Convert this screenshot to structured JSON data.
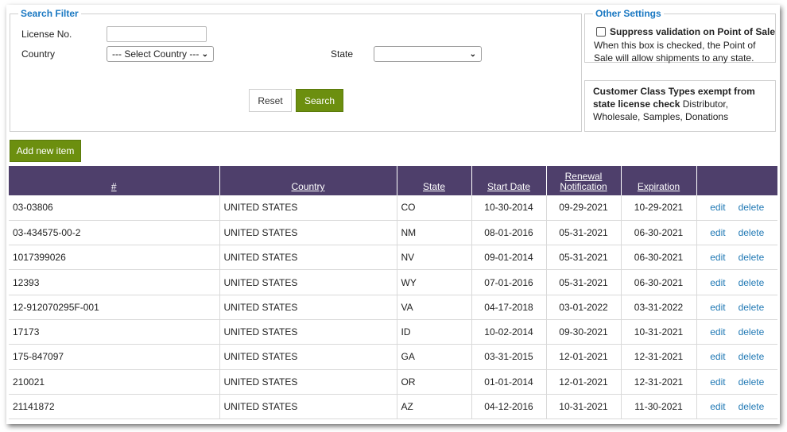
{
  "search_filter": {
    "legend": "Search Filter",
    "license_label": "License No.",
    "license_value": "",
    "country_label": "Country",
    "country_selected": "--- Select Country ---",
    "state_label": "State",
    "state_selected": "",
    "reset_label": "Reset",
    "search_label": "Search"
  },
  "other_settings": {
    "legend": "Other Settings",
    "checkbox_label": "Suppress validation on Point of Sale",
    "checked": false,
    "description": "When this box is checked, the Point of Sale will allow shipments to any state."
  },
  "customer_class": {
    "title": "Customer Class Types exempt from state license check",
    "value": "Distributor, Wholesale, Samples, Donations"
  },
  "add_new_label": "Add new item",
  "table": {
    "headers": {
      "number": "#",
      "country": "Country",
      "state": "State",
      "start_date": "Start Date",
      "renewal": "Renewal Notification",
      "expiration": "Expiration"
    },
    "edit_label": "edit",
    "delete_label": "delete",
    "rows": [
      {
        "number": "03-03806",
        "country": "UNITED STATES",
        "state": "CO",
        "start": "10-30-2014",
        "renewal": "09-29-2021",
        "expiration": "10-29-2021"
      },
      {
        "number": "03-434575-00-2",
        "country": "UNITED STATES",
        "state": "NM",
        "start": "08-01-2016",
        "renewal": "05-31-2021",
        "expiration": "06-30-2021"
      },
      {
        "number": "1017399026",
        "country": "UNITED STATES",
        "state": "NV",
        "start": "09-01-2014",
        "renewal": "05-31-2021",
        "expiration": "06-30-2021"
      },
      {
        "number": "12393",
        "country": "UNITED STATES",
        "state": "WY",
        "start": "07-01-2016",
        "renewal": "05-31-2021",
        "expiration": "06-30-2021"
      },
      {
        "number": "12-912070295F-001",
        "country": "UNITED STATES",
        "state": "VA",
        "start": "04-17-2018",
        "renewal": "03-01-2022",
        "expiration": "03-31-2022"
      },
      {
        "number": "17173",
        "country": "UNITED STATES",
        "state": "ID",
        "start": "10-02-2014",
        "renewal": "09-30-2021",
        "expiration": "10-31-2021"
      },
      {
        "number": "175-847097",
        "country": "UNITED STATES",
        "state": "GA",
        "start": "03-31-2015",
        "renewal": "12-01-2021",
        "expiration": "12-31-2021"
      },
      {
        "number": "210021",
        "country": "UNITED STATES",
        "state": "OR",
        "start": "01-01-2014",
        "renewal": "12-01-2021",
        "expiration": "12-31-2021"
      },
      {
        "number": "21141872",
        "country": "UNITED STATES",
        "state": "AZ",
        "start": "04-12-2016",
        "renewal": "10-31-2021",
        "expiration": "11-30-2021"
      }
    ]
  },
  "colors": {
    "accent_blue": "#1a78c2",
    "header_purple": "#4e3f6b",
    "button_green": "#6c8f0f",
    "link_blue": "#1f78b4"
  }
}
